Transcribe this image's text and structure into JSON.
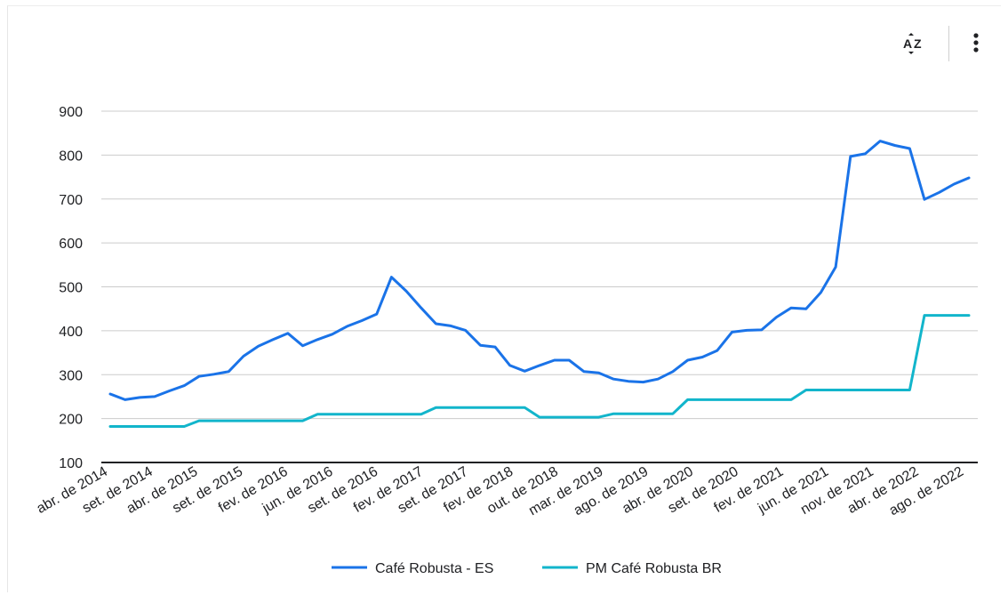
{
  "toolbar": {
    "sort_icon": "sort-az-icon",
    "more_icon": "more-vertical-icon"
  },
  "chart_data": {
    "type": "line",
    "title": "",
    "xlabel": "",
    "ylabel": "",
    "ylim": [
      100,
      900
    ],
    "yticks": [
      100,
      200,
      300,
      400,
      500,
      600,
      700,
      800,
      900
    ],
    "grid": true,
    "legend_position": "bottom",
    "x_tick_labels": [
      "abr. de 2014",
      "set. de 2014",
      "abr. de 2015",
      "set. de 2015",
      "fev. de 2016",
      "jun. de 2016",
      "set. de 2016",
      "fev. de 2017",
      "set. de 2017",
      "fev. de 2018",
      "out. de 2018",
      "mar. de 2019",
      "ago. de 2019",
      "abr. de 2020",
      "set. de 2020",
      "fev. de 2021",
      "jun. de 2021",
      "nov. de 2021",
      "abr. de 2022",
      "ago. de 2022"
    ],
    "series": [
      {
        "name": "Café Robusta - ES",
        "color": "#1a73e8",
        "values": [
          256,
          243,
          248,
          250,
          263,
          275,
          296,
          301,
          307,
          342,
          365,
          380,
          394,
          366,
          380,
          392,
          410,
          423,
          438,
          522,
          490,
          452,
          416,
          411,
          401,
          367,
          363,
          321,
          308,
          321,
          333,
          333,
          307,
          304,
          290,
          285,
          283,
          290,
          307,
          333,
          340,
          355,
          397,
          401,
          402,
          431,
          452,
          450,
          487,
          545,
          797,
          803,
          832,
          822,
          815,
          699,
          715,
          734,
          748
        ]
      },
      {
        "name": "PM Café Robusta BR",
        "color": "#12b5cb",
        "values": [
          182,
          182,
          182,
          182,
          182,
          182,
          195,
          195,
          195,
          195,
          195,
          195,
          195,
          195,
          210,
          210,
          210,
          210,
          210,
          210,
          210,
          210,
          225,
          225,
          225,
          225,
          225,
          225,
          225,
          203,
          203,
          203,
          203,
          203,
          211,
          211,
          211,
          211,
          211,
          243,
          243,
          243,
          243,
          243,
          243,
          243,
          243,
          265,
          265,
          265,
          265,
          265,
          265,
          265,
          265,
          435,
          435,
          435,
          435
        ]
      }
    ]
  }
}
